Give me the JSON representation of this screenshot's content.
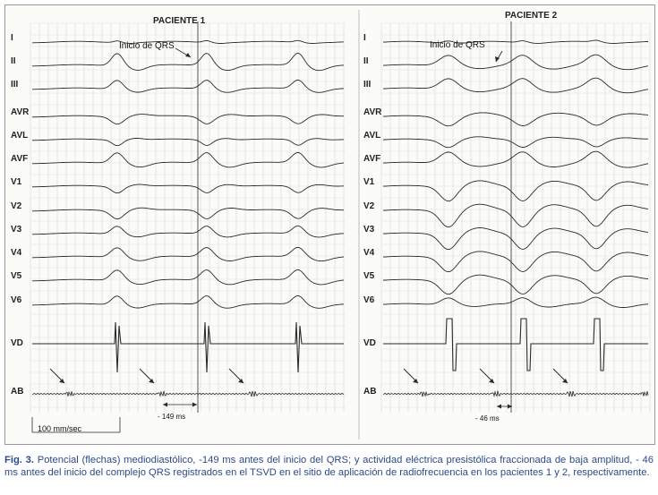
{
  "figure": {
    "panels": [
      {
        "title": "PACIENTE 1",
        "annotation": "Inicio de QRS",
        "interval": "- 149 ms"
      },
      {
        "title": "PACIENTE 2",
        "annotation": "Inicio de QRS",
        "interval": "- 46 ms"
      }
    ],
    "leads": [
      "I",
      "II",
      "III",
      "AVR",
      "AVL",
      "AVF",
      "V1",
      "V2",
      "V3",
      "V4",
      "V5",
      "V6",
      "VD",
      "AB"
    ],
    "scale_label": "100 mm/sec",
    "colors": {
      "trace": "#2a2a2a",
      "grid": "#d9d9d9",
      "caption": "#2b4a8a"
    }
  },
  "caption": {
    "label": "Fig. 3.",
    "text": " Potencial (flechas) mediodiastólico, -149 ms antes del inicio del QRS; y actividad eléctrica presistólica fraccionada de baja amplitud, - 46 ms antes del inicio del complejo QRS registrados en el TSVD en el sitio de aplicación de radiofrecuencia en los pacientes 1 y 2, respectivamente."
  }
}
